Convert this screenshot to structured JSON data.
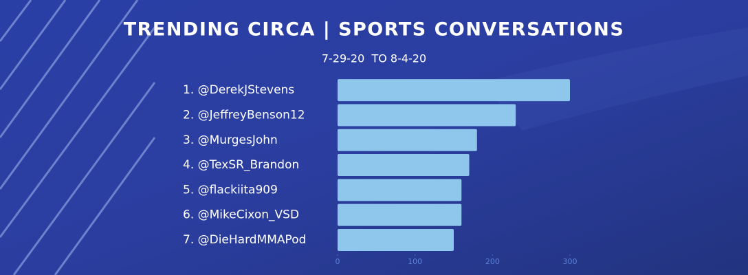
{
  "chart_data": {
    "type": "barh",
    "title": "TRENDING CIRCA | SPORTS CONVERSATIONS",
    "subtitle": "7-29-20  TO 8-4-20",
    "categories": [
      "1. @DerekJStevens",
      "2. @JeffreyBenson12",
      "3. @MurgesJohn",
      "4. @TexSR_Brandon",
      "5. @flackiita909",
      "6. @MikeCixon_VSD",
      "7. @DieHardMMAPod"
    ],
    "values": [
      300,
      230,
      180,
      170,
      160,
      160,
      150
    ],
    "color": "#8fc6ec",
    "xlim": [
      0,
      300
    ],
    "xticks": [
      0,
      100,
      200,
      300
    ]
  }
}
